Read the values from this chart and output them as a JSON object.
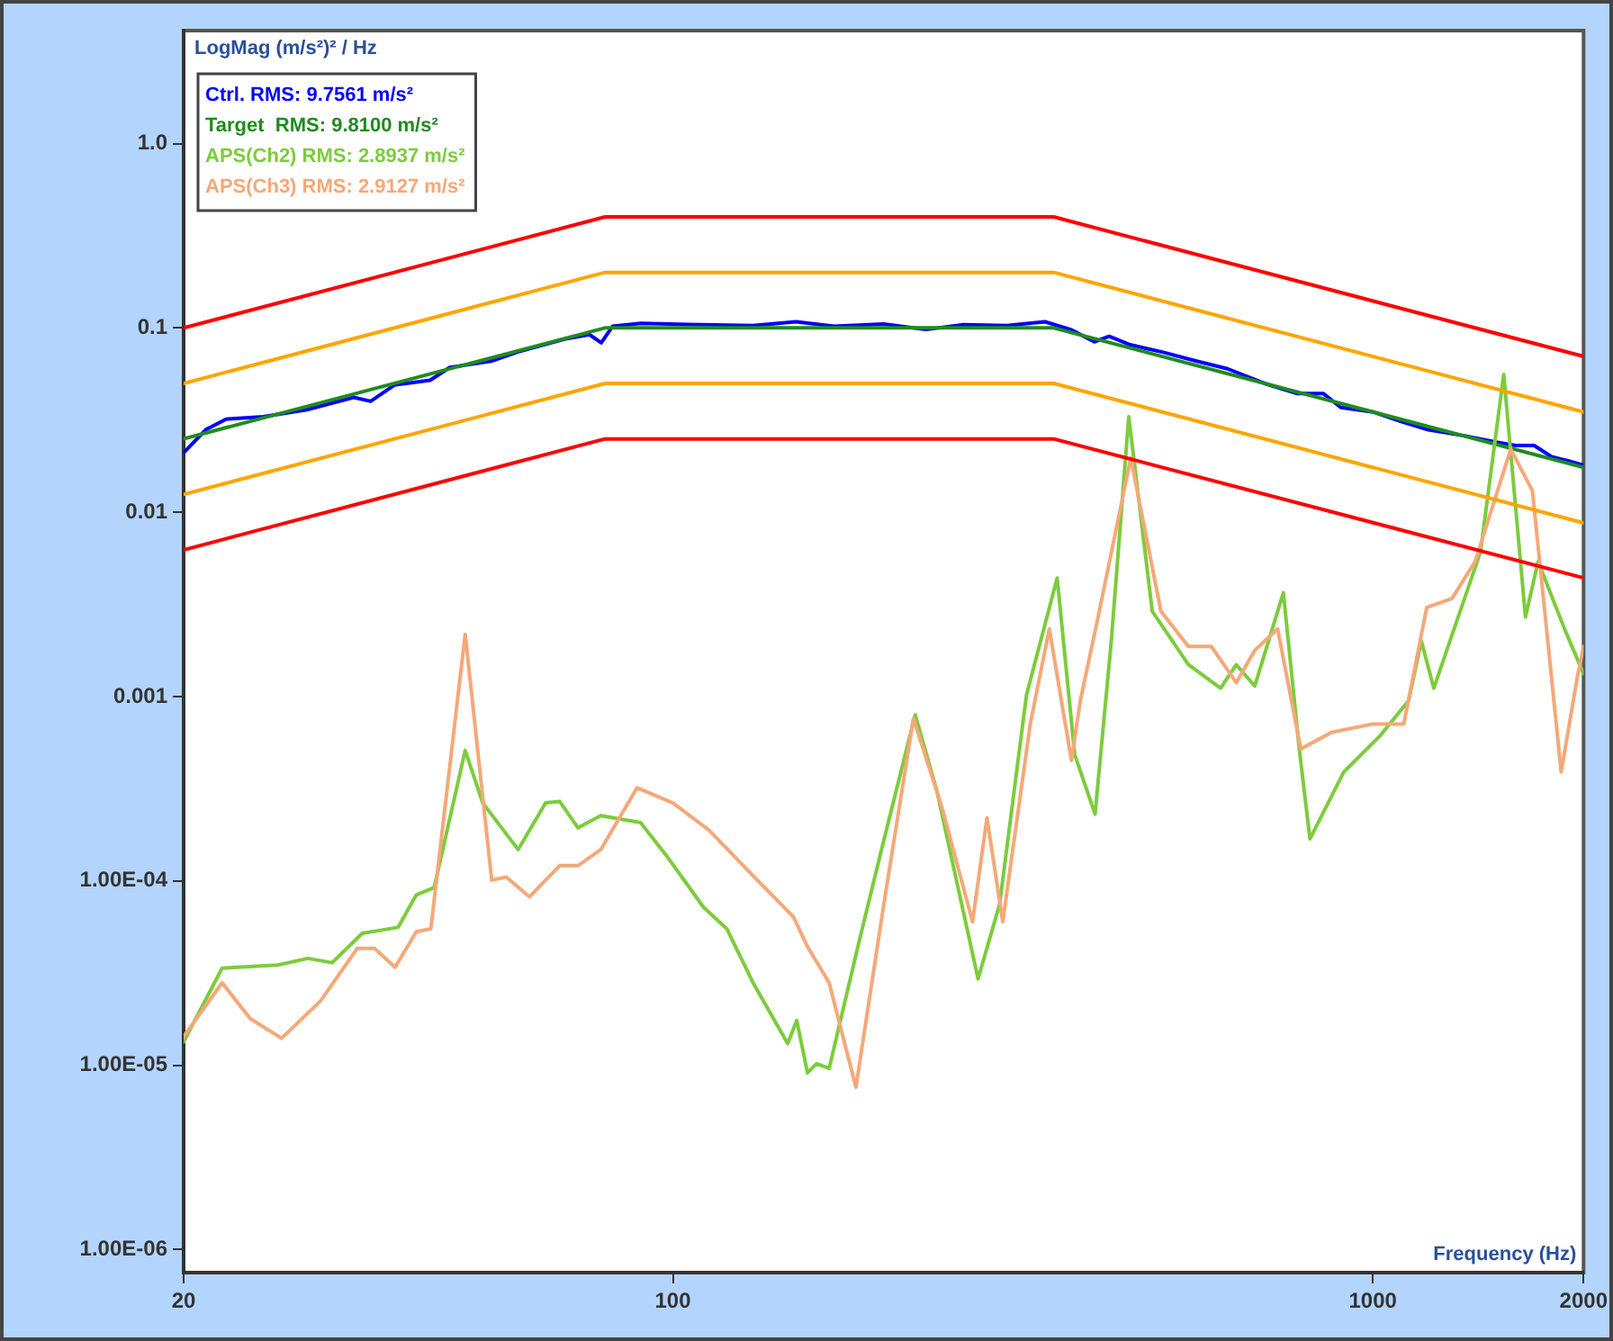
{
  "chart_data": {
    "type": "line",
    "xlabel": "Frequency (Hz)",
    "ylabel": "LogMag (m/s²)² / Hz",
    "log": "xy",
    "xlim": [
      20,
      2000
    ],
    "xticks": [
      20,
      100,
      1000,
      2000
    ],
    "ylim": [
      7.5e-07,
      4.1
    ],
    "yticks": [
      {
        "value": 1,
        "label": "1.0"
      },
      0.1,
      0.01,
      0.001,
      {
        "value": 0.0001,
        "label": "1.00E-04"
      },
      {
        "value": 1e-05,
        "label": "1.00E-05"
      },
      {
        "value": 1e-06,
        "label": "1.00E-06"
      }
    ],
    "legend": "top left",
    "marker": "none",
    "line_style": "solid",
    "series": [
      {
        "color": "#ff0000",
        "x": [
          20,
          80,
          350,
          2000
        ],
        "values": [
          0.1,
          0.4,
          0.4,
          0.07
        ]
      },
      {
        "color": "#ffa500",
        "x": [
          20,
          80,
          350,
          2000
        ],
        "values": [
          0.05,
          0.2,
          0.2,
          0.035
        ]
      },
      {
        "color": "#ffa500",
        "x": [
          20,
          80,
          350,
          2000
        ],
        "values": [
          0.0125,
          0.05,
          0.05,
          0.00875
        ]
      },
      {
        "color": "#ff0000",
        "x": [
          20,
          80,
          350,
          2000
        ],
        "values": [
          0.00625,
          0.025,
          0.025,
          0.0044
        ]
      },
      {
        "name": "APS(Ch3) RMS: 2.9127 m/s²",
        "color": "#f5a878",
        "x": [
          20,
          22.7,
          24.9,
          27.6,
          31.4,
          35.4,
          37.5,
          40.1,
          43,
          45.1,
          50.5,
          55.1,
          57.8,
          62.4,
          68.9,
          73.2,
          78.9,
          88.9,
          100,
          112.5,
          132,
          148.6,
          155.7,
          167.2,
          182.6,
          199.5,
          220.6,
          242.5,
          268,
          281,
          296,
          324,
          345,
          371,
          382,
          405,
          451,
          498,
          545,
          588,
          638,
          678,
          731,
          789,
          873,
          1000,
          1107,
          1194,
          1297,
          1400,
          1574,
          1690,
          1858,
          1959,
          2000
        ],
        "values": [
          1.43e-05,
          2.8e-05,
          1.79e-05,
          1.4e-05,
          2.24e-05,
          4.3e-05,
          4.3e-05,
          3.4e-05,
          5.3e-05,
          5.5e-05,
          0.00218,
          0.000101,
          0.000105,
          8.2e-05,
          0.000121,
          0.000121,
          0.000148,
          0.00032,
          0.000265,
          0.000189,
          0.000101,
          6.4e-05,
          4.4e-05,
          2.8e-05,
          7.6e-06,
          6.9e-05,
          0.00076,
          0.000248,
          6e-05,
          0.00022,
          6e-05,
          0.00071,
          0.00233,
          0.00045,
          0.00095,
          0.0027,
          0.0197,
          0.0029,
          0.00187,
          0.00187,
          0.00119,
          0.00178,
          0.00233,
          0.00052,
          0.00064,
          0.00071,
          0.00071,
          0.00305,
          0.0034,
          0.0054,
          0.022,
          0.0131,
          0.00039,
          0.00127,
          0.00187
        ]
      },
      {
        "name": "APS(Ch2) RMS: 2.8937 m/s²",
        "color": "#7ccc3c",
        "x": [
          20,
          22.7,
          27.3,
          30.1,
          32.6,
          36,
          40.5,
          43,
          45.6,
          50.5,
          53.5,
          60.1,
          65.8,
          68.9,
          73.2,
          78.9,
          89.9,
          98.2,
          110.6,
          119.4,
          130.5,
          145.9,
          150.3,
          155.7,
          160.4,
          167.2,
          184.8,
          199.5,
          221.9,
          238.2,
          272.9,
          293,
          320,
          354,
          375,
          401,
          423,
          448,
          484,
          545,
          606,
          638,
          678,
          745,
          785,
          813,
          909,
          1023,
          1125,
          1173,
          1222,
          1425,
          1538,
          1652,
          1722,
          1881,
          2000
        ],
        "values": [
          1.34e-05,
          3.36e-05,
          3.5e-05,
          3.8e-05,
          3.6e-05,
          5.2e-05,
          5.6e-05,
          8.4e-05,
          9.2e-05,
          0.00051,
          0.000265,
          0.000148,
          0.000265,
          0.00027,
          0.000194,
          0.000226,
          0.000207,
          0.000135,
          7.2e-05,
          5.5e-05,
          2.75e-05,
          1.31e-05,
          1.75e-05,
          9.1e-06,
          1.02e-05,
          9.6e-06,
          4.8e-05,
          0.000158,
          0.000796,
          0.00031,
          2.94e-05,
          7.5e-05,
          0.00102,
          0.0044,
          0.000485,
          0.00023,
          0.002,
          0.033,
          0.0029,
          0.00149,
          0.00111,
          0.00149,
          0.00114,
          0.00366,
          0.00052,
          0.000169,
          0.00039,
          0.00061,
          0.00095,
          0.002,
          0.00111,
          0.0061,
          0.056,
          0.0027,
          0.0054,
          0.0023,
          0.00133
        ]
      },
      {
        "name": "Target  RMS: 9.8100 m/s²",
        "color": "#1e8c1e",
        "x": [
          20,
          80,
          350,
          2000
        ],
        "values": [
          0.025,
          0.1,
          0.1,
          0.0175
        ]
      },
      {
        "name": "Ctrl. RMS: 9.7561 m/s²",
        "color": "#0000ff",
        "x": [
          20,
          21.5,
          23,
          26,
          30,
          35,
          37,
          40,
          45,
          48,
          55,
          60,
          70,
          76,
          79,
          82,
          90,
          110,
          130,
          150,
          170,
          200,
          230,
          260,
          300,
          340,
          370,
          400,
          420,
          450,
          500,
          560,
          620,
          700,
          780,
          850,
          900,
          1000,
          1100,
          1200,
          1350,
          1500,
          1600,
          1700,
          1800,
          1900,
          2000
        ],
        "values": [
          0.021,
          0.028,
          0.032,
          0.033,
          0.036,
          0.042,
          0.04,
          0.049,
          0.052,
          0.061,
          0.066,
          0.074,
          0.087,
          0.092,
          0.083,
          0.102,
          0.106,
          0.104,
          0.103,
          0.108,
          0.102,
          0.105,
          0.098,
          0.104,
          0.103,
          0.108,
          0.098,
          0.084,
          0.09,
          0.081,
          0.074,
          0.066,
          0.06,
          0.05,
          0.044,
          0.044,
          0.037,
          0.035,
          0.031,
          0.028,
          0.026,
          0.024,
          0.023,
          0.023,
          0.02,
          0.019,
          0.018
        ]
      }
    ]
  }
}
